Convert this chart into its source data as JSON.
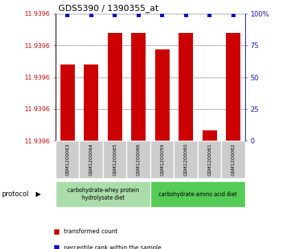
{
  "title": "GDS5390 / 1390355_at",
  "samples": [
    "GSM1200063",
    "GSM1200064",
    "GSM1200065",
    "GSM1200066",
    "GSM1200059",
    "GSM1200060",
    "GSM1200061",
    "GSM1200062"
  ],
  "red_bar_heights": [
    60,
    60,
    85,
    85,
    72,
    85,
    8,
    85
  ],
  "blue_percentiles": [
    99,
    99,
    99,
    99,
    99,
    99,
    99,
    99
  ],
  "ytick_label": "11.9396",
  "yticks_positions": [
    0,
    25,
    50,
    75,
    100
  ],
  "yticks_right": [
    0,
    25,
    50,
    75,
    100
  ],
  "bar_color": "#cc0000",
  "blue_color": "#1111cc",
  "sample_box_color": "#cccccc",
  "protocol_groups": [
    {
      "label": "carbohydrate-whey protein\nhydrolysate diet",
      "indices": [
        0,
        1,
        2,
        3
      ],
      "color": "#aaddaa"
    },
    {
      "label": "carbohydrate-amino acid diet",
      "indices": [
        4,
        5,
        6,
        7
      ],
      "color": "#55cc55"
    }
  ],
  "legend_items": [
    {
      "label": "transformed count",
      "color": "#cc0000"
    },
    {
      "label": "percentile rank within the sample",
      "color": "#1111cc"
    }
  ],
  "left_axis_color": "#cc0000",
  "right_axis_color": "#1111cc"
}
